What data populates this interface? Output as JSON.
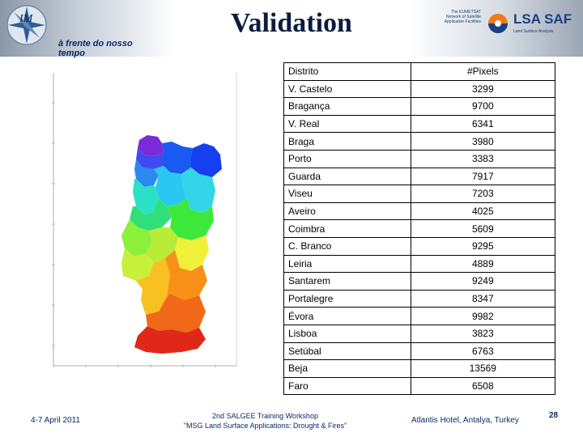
{
  "header": {
    "title": "Validation",
    "tagline": "à frente do nosso tempo",
    "eumetsat_text": "The EUMETSAT Network of Satellite Application Facilities",
    "brand": "LSA SAF",
    "brand_sub": "Land Surface Analysis"
  },
  "map": {
    "y_tick_labels": [
      "",
      "",
      "",
      "",
      "",
      "",
      ""
    ],
    "x_tick_labels": [
      "",
      "",
      "",
      "",
      "",
      ""
    ],
    "district_colors": [
      "#7a2ad6",
      "#1540f0",
      "#2a8af2",
      "#33d6e8",
      "#2ae0c6",
      "#2fe07a",
      "#3ee83a",
      "#8cf03a",
      "#c8f03a",
      "#f0f03a",
      "#f8c020",
      "#f89018",
      "#f06818",
      "#e84818",
      "#e02818",
      "#d81410"
    ]
  },
  "table": {
    "headers": [
      "Distrito",
      "#Pixels"
    ],
    "rows": [
      [
        "V. Castelo",
        "3299"
      ],
      [
        "Bragança",
        "9700"
      ],
      [
        "V. Real",
        "6341"
      ],
      [
        "Braga",
        "3980"
      ],
      [
        "Porto",
        "3383"
      ],
      [
        "Guarda",
        "7917"
      ],
      [
        "Viseu",
        "7203"
      ],
      [
        "Aveiro",
        "4025"
      ],
      [
        "Coimbra",
        "5609"
      ],
      [
        "C. Branco",
        "9295"
      ],
      [
        "Leiria",
        "4889"
      ],
      [
        "Santarem",
        "9249"
      ],
      [
        "Portalegre",
        "8347"
      ],
      [
        "Évora",
        "9982"
      ],
      [
        "Lisboa",
        "3823"
      ],
      [
        "Setúbal",
        "6763"
      ],
      [
        "Beja",
        "13569"
      ],
      [
        "Faro",
        "6508"
      ]
    ]
  },
  "footer": {
    "date": "4-7 April 2011",
    "workshop_line1": "2nd SALGEE Training Workshop",
    "workshop_line2": "\"MSG Land Surface Applications: Drought & Fires\"",
    "venue": "Atlantis Hotel, Antalya, Turkey",
    "page": "28"
  },
  "colors": {
    "navy": "#0b1c3e",
    "brand_blue": "#1a3f85",
    "brand_orange": "#f07a1a"
  }
}
